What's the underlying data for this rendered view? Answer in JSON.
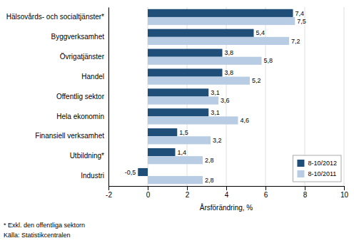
{
  "chart_data": {
    "type": "bar",
    "orientation": "horizontal",
    "categories": [
      "Industri",
      "Utbildning*",
      "Finansiell verksamhet",
      "Hela ekonomin",
      "Offentlig sektor",
      "Handel",
      "Övrigatjänster",
      "Byggverksamhet",
      "Hälsovårds- och socialtjänster*"
    ],
    "series": [
      {
        "name": "8-10/2012",
        "color": "#1f4e79",
        "values": [
          -0.5,
          1.4,
          1.5,
          3.1,
          3.1,
          3.8,
          3.8,
          5.4,
          7.4
        ],
        "value_labels": [
          "-0,5",
          "1,4",
          "1,5",
          "3,1",
          "3,1",
          "3,8",
          "3,8",
          "5,4",
          "7,4"
        ]
      },
      {
        "name": "8-10/2011",
        "color": "#b8cce4",
        "values": [
          2.8,
          2.8,
          3.2,
          4.6,
          3.6,
          5.2,
          5.8,
          7.2,
          7.5
        ],
        "value_labels": [
          "2,8",
          "2,8",
          "3,2",
          "4,6",
          "3,6",
          "5,2",
          "5,8",
          "7,2",
          "7,5"
        ]
      }
    ],
    "xlim": [
      -2,
      10
    ],
    "xticks": [
      -2,
      0,
      2,
      4,
      6,
      8,
      10
    ],
    "xlabel": "Årsförändring, %",
    "annotations": [
      "* Exkl. den offentliga sektorn",
      "Källa: Statistikcentralen"
    ],
    "grid": true,
    "legend": "lower right",
    "data_labels": true
  }
}
